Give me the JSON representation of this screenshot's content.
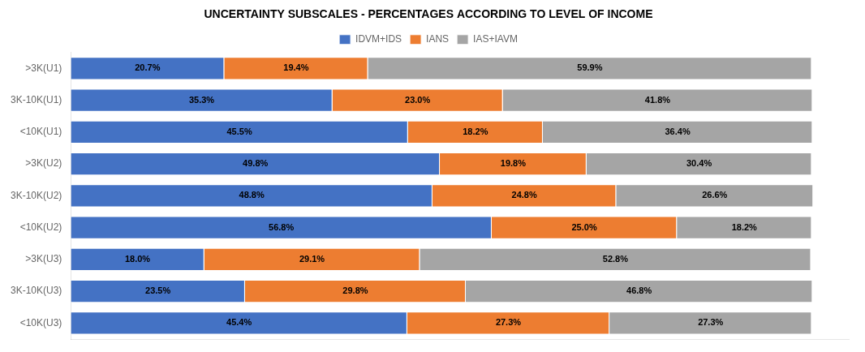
{
  "chart_data": {
    "type": "bar",
    "title": "UNCERTAINTY SUBSCALES - PERCENTAGES ACCORDING TO LEVEL OF INCOME",
    "orientation": "horizontal",
    "stacked": true,
    "categories": [
      ">3K(U1)",
      "3K-10K(U1)",
      "<10K(U1)",
      ">3K(U2)",
      "3K-10K(U2)",
      "<10K(U2)",
      ">3K(U3)",
      "3K-10K(U3)",
      "<10K(U3)"
    ],
    "series": [
      {
        "name": "IDVM+IDS",
        "color": "#4472C4",
        "values": [
          20.7,
          35.3,
          45.5,
          49.8,
          48.8,
          56.8,
          18.0,
          23.5,
          45.4
        ],
        "value_labels": [
          "20.7%",
          "35.3%",
          "45.5%",
          "49.8%",
          "48.8%",
          "56.8%",
          "18.0%",
          "23.5%",
          "45.4%"
        ]
      },
      {
        "name": "IANS",
        "color": "#ED7D31",
        "values": [
          19.4,
          23.0,
          18.2,
          19.8,
          24.8,
          25.0,
          29.1,
          29.8,
          27.3
        ],
        "value_labels": [
          "19.4%",
          "23.0%",
          "18.2%",
          "19.8%",
          "24.8%",
          "25.0%",
          "29.1%",
          "29.8%",
          "27.3%"
        ]
      },
      {
        "name": "IAS+IAVM",
        "color": "#A5A5A5",
        "values": [
          59.9,
          41.8,
          36.4,
          30.4,
          26.6,
          18.2,
          52.8,
          46.8,
          27.3
        ],
        "value_labels": [
          "59.9%",
          "41.8%",
          "36.4%",
          "30.4%",
          "26.6%",
          "18.2%",
          "52.8%",
          "46.8%",
          "27.3%"
        ]
      }
    ],
    "xlim": [
      0,
      105
    ],
    "grid": false,
    "legend": "top",
    "data_labels": true,
    "tick_labels": "y"
  }
}
